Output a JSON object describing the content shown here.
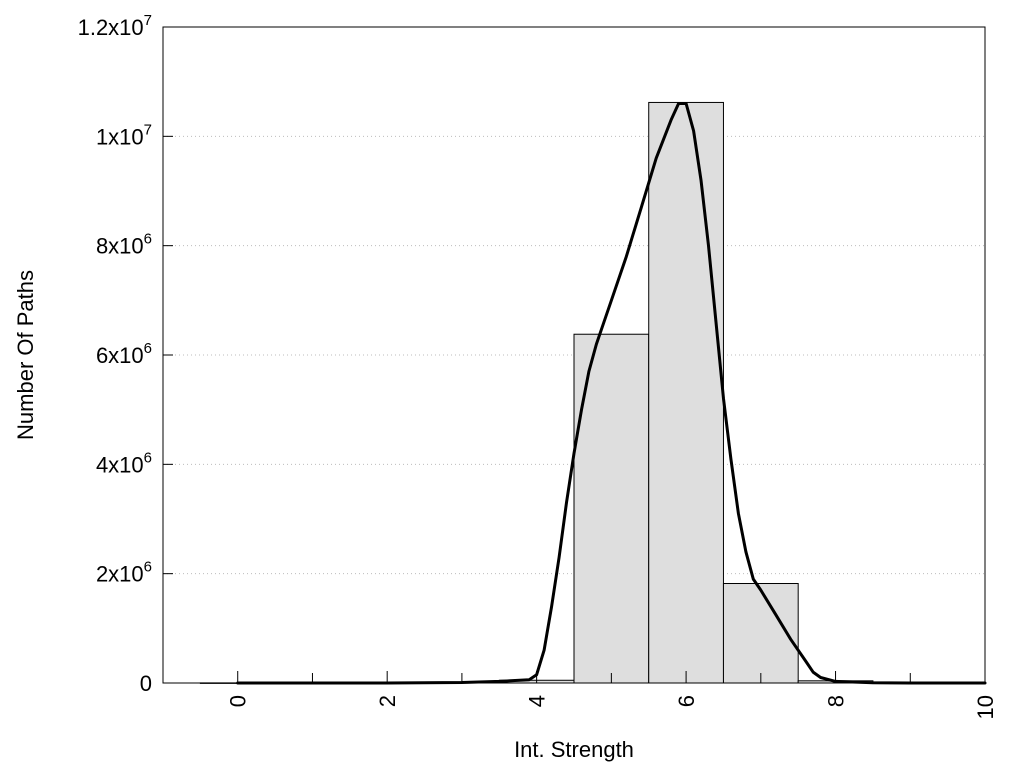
{
  "chart_data": {
    "type": "bar",
    "title": "",
    "xlabel": "Int. Strength",
    "ylabel": "Number Of Paths",
    "xlim": [
      -1,
      10
    ],
    "ylim": [
      0,
      12000000
    ],
    "grid": "horizontal-dotted",
    "legend": "none",
    "x_ticks": [
      {
        "value": 0,
        "label": "0"
      },
      {
        "value": 2,
        "label": "2"
      },
      {
        "value": 4,
        "label": "4"
      },
      {
        "value": 6,
        "label": "6"
      },
      {
        "value": 8,
        "label": "8"
      },
      {
        "value": 10,
        "label": "10"
      }
    ],
    "y_ticks": [
      {
        "value": 0,
        "base": "0",
        "exp": ""
      },
      {
        "value": 2000000,
        "base": "2x10",
        "exp": "6"
      },
      {
        "value": 4000000,
        "base": "4x10",
        "exp": "6"
      },
      {
        "value": 6000000,
        "base": "6x10",
        "exp": "6"
      },
      {
        "value": 8000000,
        "base": "8x10",
        "exp": "6"
      },
      {
        "value": 10000000,
        "base": "1x10",
        "exp": "7"
      },
      {
        "value": 12000000,
        "base": "1.2x10",
        "exp": "7"
      }
    ],
    "bin_width": 1,
    "bars": {
      "centers": [
        0,
        1,
        2,
        3,
        4,
        5,
        6,
        7,
        8,
        9
      ],
      "values": [
        2000,
        3000,
        5000,
        15000,
        50000,
        6380000,
        10620000,
        1820000,
        40000,
        5000
      ]
    },
    "curve": {
      "x": [
        0,
        1,
        2,
        3,
        3.5,
        3.9,
        4.0,
        4.1,
        4.2,
        4.3,
        4.4,
        4.5,
        4.6,
        4.7,
        4.8,
        4.9,
        5.0,
        5.2,
        5.4,
        5.6,
        5.8,
        5.9,
        6.0,
        6.1,
        6.2,
        6.3,
        6.4,
        6.5,
        6.6,
        6.7,
        6.8,
        6.9,
        7.0,
        7.2,
        7.4,
        7.6,
        7.7,
        7.8,
        8.0,
        8.5,
        9.0,
        10.0
      ],
      "y": [
        0,
        0,
        0,
        10000,
        30000,
        60000,
        150000,
        600000,
        1400000,
        2300000,
        3300000,
        4200000,
        5000000,
        5700000,
        6200000,
        6600000,
        7000000,
        7800000,
        8700000,
        9600000,
        10300000,
        10600000,
        10600000,
        10100000,
        9200000,
        8000000,
        6600000,
        5200000,
        4100000,
        3100000,
        2400000,
        1900000,
        1700000,
        1250000,
        800000,
        400000,
        200000,
        100000,
        30000,
        5000,
        0,
        0
      ]
    }
  }
}
